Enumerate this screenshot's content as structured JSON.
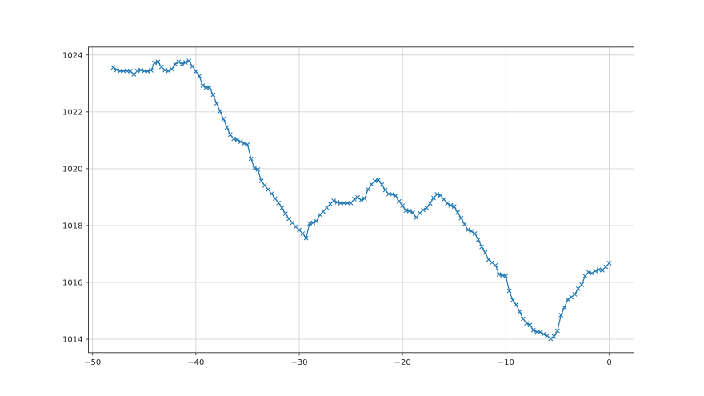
{
  "style": {
    "background": "#ffffff",
    "line_color": "#1f77b4",
    "grid_color": "#d4d4d4",
    "spine_color": "#404040",
    "tick_color": "#404040",
    "tick_label_color": "#262626"
  },
  "chart_data": {
    "type": "line",
    "marker": "x",
    "title": "",
    "xlabel": "",
    "ylabel": "",
    "grid": true,
    "legend_position": "none",
    "xlim": [
      -50.4,
      2.4
    ],
    "ylim": [
      1013.53,
      1024.28
    ],
    "x_ticks": [
      -50,
      -40,
      -30,
      -20,
      -10,
      0
    ],
    "x_tick_labels": [
      "−50",
      "−40",
      "−30",
      "−20",
      "−10",
      "0"
    ],
    "y_ticks": [
      1014,
      1016,
      1018,
      1020,
      1022,
      1024
    ],
    "y_tick_labels": [
      "1014",
      "1016",
      "1018",
      "1020",
      "1022",
      "1024"
    ],
    "x_start": -48,
    "x_end": 0,
    "values": [
      1023.56,
      1023.48,
      1023.44,
      1023.44,
      1023.44,
      1023.43,
      1023.32,
      1023.44,
      1023.47,
      1023.44,
      1023.43,
      1023.46,
      1023.72,
      1023.76,
      1023.58,
      1023.47,
      1023.44,
      1023.5,
      1023.68,
      1023.76,
      1023.68,
      1023.74,
      1023.79,
      1023.6,
      1023.42,
      1023.26,
      1022.92,
      1022.86,
      1022.85,
      1022.6,
      1022.3,
      1022.02,
      1021.75,
      1021.45,
      1021.2,
      1021.05,
      1021.02,
      1020.95,
      1020.89,
      1020.85,
      1020.35,
      1020.02,
      1019.97,
      1019.57,
      1019.41,
      1019.27,
      1019.12,
      1018.95,
      1018.8,
      1018.62,
      1018.42,
      1018.24,
      1018.1,
      1017.96,
      1017.84,
      1017.72,
      1017.56,
      1018.07,
      1018.1,
      1018.15,
      1018.38,
      1018.49,
      1018.63,
      1018.76,
      1018.87,
      1018.82,
      1018.79,
      1018.79,
      1018.79,
      1018.79,
      1018.93,
      1018.99,
      1018.9,
      1018.95,
      1019.27,
      1019.45,
      1019.57,
      1019.61,
      1019.44,
      1019.25,
      1019.11,
      1019.1,
      1019.05,
      1018.85,
      1018.7,
      1018.53,
      1018.51,
      1018.46,
      1018.28,
      1018.44,
      1018.55,
      1018.62,
      1018.78,
      1018.97,
      1019.1,
      1019.06,
      1018.92,
      1018.78,
      1018.71,
      1018.67,
      1018.46,
      1018.26,
      1018.05,
      1017.85,
      1017.8,
      1017.72,
      1017.5,
      1017.25,
      1017.05,
      1016.8,
      1016.7,
      1016.6,
      1016.28,
      1016.25,
      1016.22,
      1015.7,
      1015.38,
      1015.22,
      1014.97,
      1014.72,
      1014.56,
      1014.5,
      1014.32,
      1014.26,
      1014.25,
      1014.18,
      1014.12,
      1014.02,
      1014.1,
      1014.3,
      1014.85,
      1015.12,
      1015.4,
      1015.48,
      1015.58,
      1015.78,
      1015.92,
      1016.22,
      1016.36,
      1016.32,
      1016.4,
      1016.45,
      1016.43,
      1016.55,
      1016.68
    ]
  }
}
